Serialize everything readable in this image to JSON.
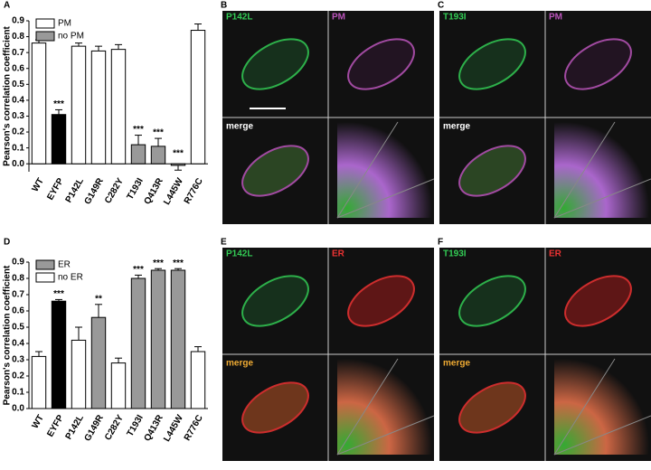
{
  "chart_data": [
    {
      "type": "bar",
      "panel": "A",
      "ylabel": "Pearson's  correlation coefficient",
      "categories": [
        "WT",
        "EYFP",
        "P142L",
        "G149R",
        "C282Y",
        "T193I",
        "Q413R",
        "L445W",
        "R776C"
      ],
      "values": [
        0.76,
        0.31,
        0.74,
        0.71,
        0.72,
        0.12,
        0.11,
        -0.01,
        0.84
      ],
      "errors": [
        0.02,
        0.03,
        0.02,
        0.03,
        0.03,
        0.06,
        0.05,
        0.03,
        0.04
      ],
      "colors": [
        "#ffffff",
        "#000000",
        "#ffffff",
        "#ffffff",
        "#ffffff",
        "#999999",
        "#999999",
        "#999999",
        "#ffffff"
      ],
      "annotations": [
        null,
        "***",
        null,
        null,
        null,
        "***",
        "***",
        "***",
        null
      ],
      "legend": [
        {
          "name": "PM",
          "color": "#ffffff"
        },
        {
          "name": "no PM",
          "color": "#999999"
        }
      ],
      "ylim": [
        -0.05,
        0.9
      ],
      "yticks": [
        {
          "value": 0,
          "label": "0.0"
        },
        0.1,
        0.2,
        0.3,
        0.4,
        0.5,
        0.6,
        0.7,
        0.8,
        0.9
      ]
    },
    {
      "type": "bar",
      "panel": "D",
      "ylabel": "Pearson's  correlation coefficient",
      "categories": [
        "WT",
        "EYFP",
        "P142L",
        "G149R",
        "C282Y",
        "T193I",
        "Q413R",
        "L445W",
        "R776C"
      ],
      "values": [
        0.32,
        0.66,
        0.42,
        0.56,
        0.28,
        0.8,
        0.85,
        0.85,
        0.35
      ],
      "errors": [
        0.03,
        0.01,
        0.08,
        0.08,
        0.03,
        0.02,
        0.01,
        0.01,
        0.03
      ],
      "colors": [
        "#ffffff",
        "#000000",
        "#ffffff",
        "#999999",
        "#ffffff",
        "#999999",
        "#999999",
        "#999999",
        "#ffffff"
      ],
      "annotations": [
        null,
        "***",
        null,
        "**",
        null,
        "***",
        "***",
        "***",
        null
      ],
      "legend": [
        {
          "name": "ER",
          "color": "#999999"
        },
        {
          "name": "no ER",
          "color": "#ffffff"
        }
      ],
      "ylim": [
        0,
        0.9
      ],
      "yticks": [
        {
          "value": 0,
          "label": "0.0"
        },
        0.1,
        0.2,
        0.3,
        0.4,
        0.5,
        0.6,
        0.7,
        0.8,
        0.9
      ]
    }
  ],
  "panels": [
    {
      "letter": "B",
      "green": "P142L",
      "other": "PM",
      "merge": "merge"
    },
    {
      "letter": "C",
      "green": "T193I",
      "other": "PM",
      "merge": "merge"
    },
    {
      "letter": "E",
      "green": "P142L",
      "other": "ER",
      "merge": "merge"
    },
    {
      "letter": "F",
      "green": "T193I",
      "other": "ER",
      "merge": "merge"
    }
  ]
}
